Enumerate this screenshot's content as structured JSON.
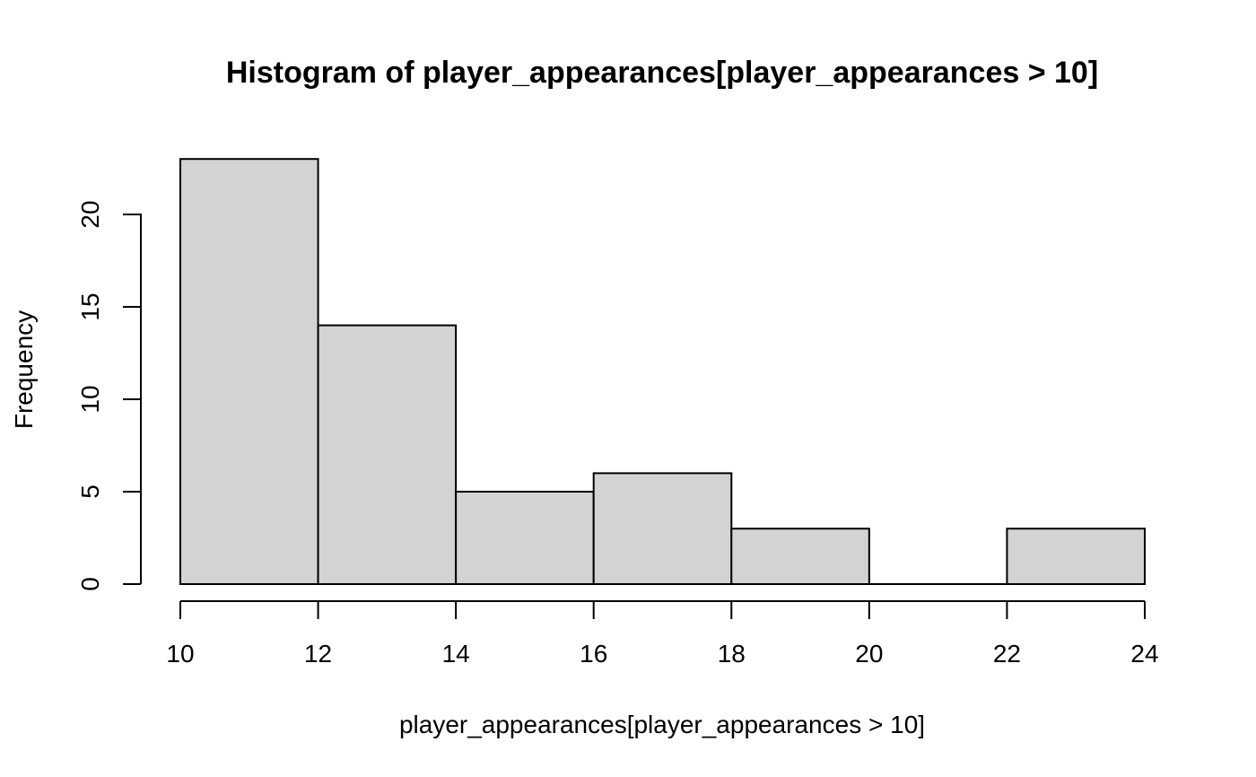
{
  "chart_data": {
    "type": "bar",
    "subtype": "histogram",
    "title": "Histogram of player_appearances[player_appearances > 10]",
    "xlabel": "player_appearances[player_appearances > 10]",
    "ylabel": "Frequency",
    "bins": [
      {
        "start": 10,
        "end": 12,
        "count": 23
      },
      {
        "start": 12,
        "end": 14,
        "count": 14
      },
      {
        "start": 14,
        "end": 16,
        "count": 5
      },
      {
        "start": 16,
        "end": 18,
        "count": 6
      },
      {
        "start": 18,
        "end": 20,
        "count": 3
      },
      {
        "start": 20,
        "end": 22,
        "count": 0
      },
      {
        "start": 22,
        "end": 24,
        "count": 3
      }
    ],
    "x_ticks": [
      10,
      12,
      14,
      16,
      18,
      20,
      22,
      24
    ],
    "y_ticks": [
      0,
      5,
      10,
      15,
      20
    ],
    "xlim": [
      10,
      24
    ],
    "ylim": [
      0,
      23
    ],
    "grid": false,
    "legend": "none",
    "bar_fill": "#d3d3d3",
    "bar_stroke": "#000000"
  }
}
